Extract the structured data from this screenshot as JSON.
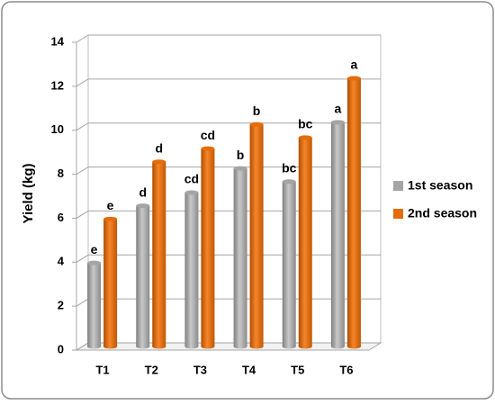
{
  "chart_data": {
    "type": "bar",
    "y_label": "Yield (kg)",
    "categories": [
      "T1",
      "T2",
      "T3",
      "T4",
      "T5",
      "T6"
    ],
    "series": [
      {
        "name": "1st season",
        "color": "#a5a5a5",
        "values": [
          3.8,
          6.4,
          7.0,
          8.1,
          7.5,
          10.2
        ],
        "annotations": [
          "e",
          "d",
          "cd",
          "b",
          "bc",
          "a"
        ]
      },
      {
        "name": "2nd season",
        "color": "#e46c0a",
        "values": [
          5.8,
          8.4,
          9.0,
          10.1,
          9.5,
          12.2
        ],
        "annotations": [
          "e",
          "d",
          "cd",
          "b",
          "bc",
          "a"
        ]
      }
    ],
    "ylim": [
      0,
      14
    ],
    "yticks": [
      0,
      2,
      4,
      6,
      8,
      10,
      12,
      14
    ],
    "grid": true,
    "legend": "right"
  }
}
